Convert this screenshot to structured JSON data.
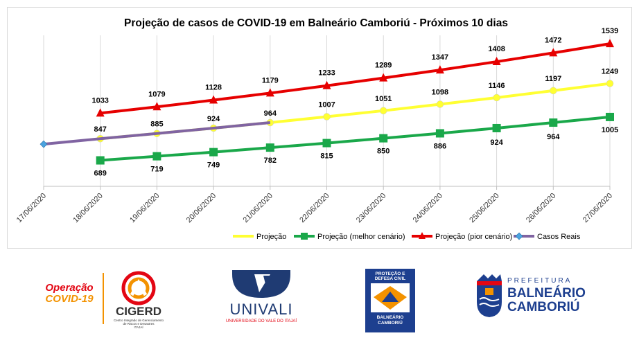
{
  "chart_data": {
    "type": "line",
    "title": "Projeção de casos de COVID-19 em Balneário Camboriú - Próximos 10 dias",
    "categories": [
      "17/06/2020",
      "18/06/2020",
      "19/06/2020",
      "20/06/2020",
      "21/06/2020",
      "22/06/2020",
      "23/06/2020",
      "24/06/2020",
      "25/06/2020",
      "26/06/2020",
      "27/06/2020"
    ],
    "ylim": [
      500,
      1600
    ],
    "grid": "vertical",
    "legend_position": "bottom",
    "series": [
      {
        "name": "Projeção",
        "color": "#ffff33",
        "marker": "circle",
        "labeled": false,
        "values": [
          null,
          847,
          885,
          924,
          964,
          1007,
          1051,
          1098,
          1146,
          1197,
          1249
        ],
        "labels": [
          null,
          null,
          null,
          null,
          null,
          "1007",
          "1051",
          "1098",
          "1146",
          "1197",
          "1249"
        ]
      },
      {
        "name": "Projeção (melhor cenário)",
        "color": "#1aa84a",
        "marker": "square",
        "values": [
          null,
          689,
          719,
          749,
          782,
          815,
          850,
          886,
          924,
          964,
          1005
        ],
        "labels": [
          null,
          "689",
          "719",
          "749",
          "782",
          "815",
          "850",
          "886",
          "924",
          "964",
          "1005"
        ]
      },
      {
        "name": "Projeção (pior cenário)",
        "color": "#e60000",
        "marker": "triangle",
        "values": [
          null,
          1033,
          1079,
          1128,
          1179,
          1233,
          1289,
          1347,
          1408,
          1472,
          1539
        ],
        "labels": [
          null,
          "1033",
          "1079",
          "1128",
          "1179",
          "1233",
          "1289",
          "1347",
          "1408",
          "1472",
          "1539"
        ]
      },
      {
        "name": "Casos Reais",
        "color": "#8064a2",
        "marker": "diamond",
        "marker_color": "#4aa3df",
        "values": [
          807,
          847,
          885,
          924,
          964,
          null,
          null,
          null,
          null,
          null,
          null
        ],
        "labels": [
          null,
          "847",
          "885",
          "924",
          "964",
          null,
          null,
          null,
          null,
          null,
          null
        ]
      }
    ]
  },
  "logos": {
    "operacao_line1": "Operação",
    "operacao_line2": "COVID-19",
    "cigerd_name": "CIGERD",
    "cigerd_sub1": "Centro Integrado de Gerenciamento",
    "cigerd_sub2": "de Riscos e Desastres",
    "cigerd_sub3": "ITAJAÍ",
    "univali_name": "UNIVALI",
    "univali_sub": "UNIVERSIDADE DO VALE DO ITAJAÍ",
    "defesa_line1": "PROTEÇÃO E",
    "defesa_line2": "DEFESA CIVIL",
    "defesa_line3": "BALNEÁRIO",
    "defesa_line4": "CAMBORIÚ",
    "prefeitura_line1": "PREFEITURA",
    "prefeitura_line2": "BALNEÁRIO",
    "prefeitura_line3": "CAMBORIÚ",
    "colors": {
      "orange": "#f39200",
      "red": "#e30613",
      "navy": "#1d3f8f",
      "univali_blue": "#1f3b73",
      "gray": "#333333"
    }
  }
}
